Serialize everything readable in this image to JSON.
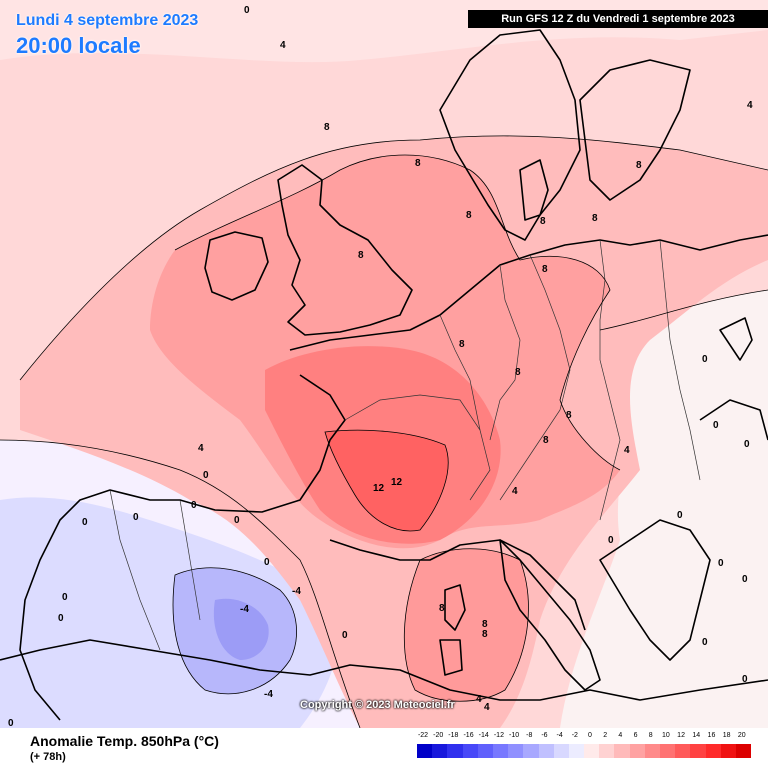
{
  "header": {
    "date": "Lundi 4 septembre 2023",
    "local_time": "20:00 locale",
    "run": "Run GFS 12 Z du Vendredi 1 septembre 2023"
  },
  "footer": {
    "variable": "Anomalie Temp. 850hPa (°C)",
    "lead_time": "(+ 78h)",
    "copyright": "Copyright © 2023 Meteociel.fr"
  },
  "legend": {
    "ticks": [
      "-22",
      "-20",
      "-18",
      "-16",
      "-14",
      "-12",
      "-10",
      "-8",
      "-6",
      "-4",
      "-2",
      "0",
      "2",
      "4",
      "6",
      "8",
      "10",
      "12",
      "14",
      "16",
      "18",
      "20"
    ],
    "colors": [
      "#0000c8",
      "#1818dc",
      "#3030ee",
      "#4848f8",
      "#6060fc",
      "#7878ff",
      "#9090ff",
      "#a8a8ff",
      "#c0c0ff",
      "#d8d8ff",
      "#ececff",
      "#ffeaea",
      "#ffd2d2",
      "#ffbaba",
      "#ffa2a2",
      "#ff8a8a",
      "#ff7272",
      "#ff5a5a",
      "#ff4242",
      "#ff2a2a",
      "#f01212",
      "#dc0000"
    ]
  },
  "contour_labels": [
    "0",
    "0",
    "0",
    "0",
    "0",
    "0",
    "0",
    "0",
    "0",
    "0",
    "0",
    "0",
    "0",
    "0",
    "0",
    "0",
    "0",
    "0",
    "0",
    "0",
    "4",
    "4",
    "4",
    "4",
    "4",
    "4",
    "4",
    "8",
    "8",
    "8",
    "8",
    "8",
    "8",
    "8",
    "8",
    "8",
    "8",
    "8",
    "8",
    "8",
    "8",
    "8",
    "12",
    "12",
    "-4",
    "-4",
    "-4"
  ]
}
